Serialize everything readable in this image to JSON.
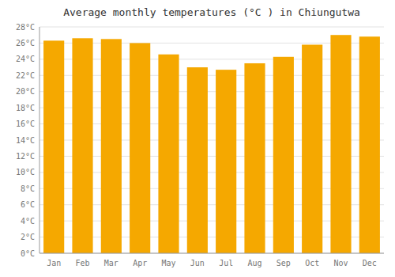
{
  "chart_data": {
    "type": "bar",
    "title": "Average monthly temperatures (°C ) in Chiungutwa",
    "categories": [
      "Jan",
      "Feb",
      "Mar",
      "Apr",
      "May",
      "Jun",
      "Jul",
      "Aug",
      "Sep",
      "Oct",
      "Nov",
      "Dec"
    ],
    "values": [
      26.3,
      26.6,
      26.5,
      26.0,
      24.6,
      23.0,
      22.7,
      23.5,
      24.3,
      25.8,
      27.0,
      26.8
    ],
    "color": "#F5A800",
    "ylim": [
      0,
      28
    ],
    "yticks": [
      {
        "value": 0,
        "label": "0°C"
      },
      {
        "value": 2,
        "label": "2°C"
      },
      {
        "value": 4,
        "label": "4°C"
      },
      {
        "value": 6,
        "label": "6°C"
      },
      {
        "value": 8,
        "label": "8°C"
      },
      {
        "value": 10,
        "label": "10°C"
      },
      {
        "value": 12,
        "label": "12°C"
      },
      {
        "value": 14,
        "label": "14°C"
      },
      {
        "value": 16,
        "label": "16°C"
      },
      {
        "value": 18,
        "label": "18°C"
      },
      {
        "value": 20,
        "label": "20°C"
      },
      {
        "value": 22,
        "label": "22°C"
      },
      {
        "value": 24,
        "label": "24°C"
      },
      {
        "value": 26,
        "label": "26°C"
      },
      {
        "value": 28,
        "label": "28°C"
      }
    ],
    "grid": true
  }
}
